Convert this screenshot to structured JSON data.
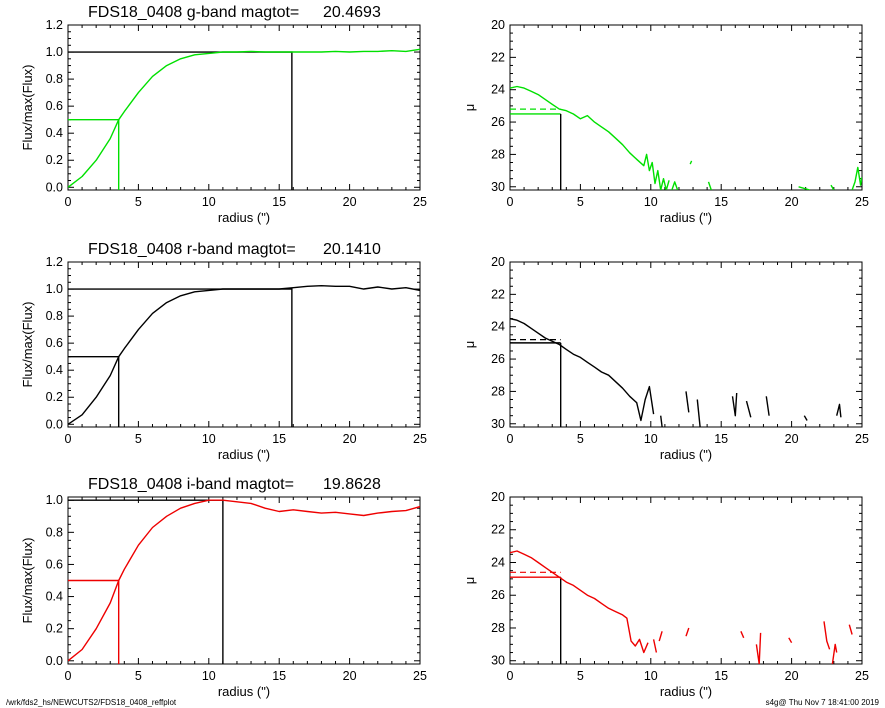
{
  "footer": {
    "left": "/wrk/fds2_hs/NEWCUTS2/FDS18_0408_reffplot",
    "right": "s4g@  Thu Nov  7 18:41:00 2019"
  },
  "colors": {
    "g": "#00e000",
    "r": "#000000",
    "i": "#ee0000",
    "axis": "#000000"
  },
  "chart_data": [
    {
      "type": "line",
      "band": "g",
      "panel": "growth-curve",
      "title_label": "FDS18_0408 g-band  magtot=",
      "title_value": "20.4693",
      "xlabel": "radius (\")",
      "ylabel": "Flux/max(Flux)",
      "xlim": [
        0,
        25
      ],
      "ylim": [
        -0.02,
        1.2
      ],
      "xticks": [
        "0",
        "5",
        "10",
        "15",
        "20",
        "25"
      ],
      "yticks": [
        "0.0",
        "0.2",
        "0.4",
        "0.6",
        "0.8",
        "1.0",
        "1.2"
      ],
      "yticks_values": [
        0,
        0.2,
        0.4,
        0.6,
        0.8,
        1.0,
        1.2
      ],
      "series": [
        {
          "x": [
            0,
            1,
            2,
            3,
            3.6,
            4,
            5,
            6,
            7,
            8,
            9,
            10,
            11,
            12,
            13,
            14,
            15,
            16,
            17,
            18,
            19,
            20,
            21,
            22,
            23,
            24,
            25
          ],
          "y": [
            0,
            0.08,
            0.2,
            0.36,
            0.5,
            0.56,
            0.7,
            0.82,
            0.9,
            0.95,
            0.98,
            0.99,
            1.0,
            1.0,
            1.005,
            1.0,
            1.0,
            1.0,
            1.0,
            1.0,
            1.005,
            1.0,
            1.005,
            1.005,
            1.01,
            1.005,
            1.02
          ]
        }
      ],
      "half_light_radius": 3.6,
      "half_light_level": 0.5,
      "total_radius": 15.9,
      "total_level": 1.0
    },
    {
      "type": "line",
      "band": "g",
      "panel": "surface-brightness",
      "xlabel": "radius (\")",
      "ylabel": "μ",
      "xlim": [
        0,
        25
      ],
      "ylim": [
        30.2,
        20
      ],
      "y_inverted": true,
      "xticks": [
        "0",
        "5",
        "10",
        "15",
        "20",
        "25"
      ],
      "yticks": [
        "20",
        "22",
        "24",
        "26",
        "28",
        "30"
      ],
      "yticks_values": [
        20,
        22,
        24,
        26,
        28,
        30
      ],
      "series": [
        {
          "x": [
            0,
            0.5,
            1,
            1.5,
            2,
            2.5,
            3,
            3.5,
            4,
            4.5,
            5,
            5.5,
            6,
            6.5,
            7,
            7.5,
            8,
            8.5,
            9,
            9.5,
            9.7,
            9.9,
            10.1,
            10.3,
            10.5,
            10.7,
            10.9,
            11.1,
            11.3
          ],
          "y": [
            23.9,
            23.8,
            23.9,
            24.1,
            24.3,
            24.6,
            24.9,
            25.2,
            25.3,
            25.5,
            25.8,
            25.6,
            26.0,
            26.3,
            26.6,
            27.0,
            27.4,
            27.9,
            28.3,
            28.7,
            28.0,
            29.0,
            28.5,
            29.8,
            29.0,
            30.2,
            29.5,
            30.2,
            29.6
          ]
        },
        {
          "x": [
            11.5,
            11.7,
            11.9
          ],
          "y": [
            30.2,
            29.7,
            30.2
          ]
        },
        {
          "x": [
            12.8,
            12.9
          ],
          "y": [
            28.6,
            28.4
          ]
        },
        {
          "x": [
            14.1,
            14.3
          ],
          "y": [
            29.7,
            30.2
          ]
        },
        {
          "x": [
            20.5,
            21.3
          ],
          "y": [
            30.0,
            30.2
          ]
        },
        {
          "x": [
            22.8,
            23.0
          ],
          "y": [
            29.9,
            30.2
          ]
        },
        {
          "x": [
            24.3,
            24.5,
            24.7,
            24.9,
            25
          ],
          "y": [
            30.2,
            29.7,
            28.8,
            29.9,
            29.4
          ]
        }
      ],
      "reff": 3.6,
      "mu_eff": 25.5,
      "mu_mean": 25.2
    },
    {
      "type": "line",
      "band": "r",
      "panel": "growth-curve",
      "title_label": "FDS18_0408 r-band  magtot=",
      "title_value": "20.1410",
      "xlabel": "radius (\")",
      "ylabel": "Flux/max(Flux)",
      "xlim": [
        0,
        25
      ],
      "ylim": [
        -0.02,
        1.2
      ],
      "xticks": [
        "0",
        "5",
        "10",
        "15",
        "20",
        "25"
      ],
      "yticks": [
        "0.0",
        "0.2",
        "0.4",
        "0.6",
        "0.8",
        "1.0",
        "1.2"
      ],
      "yticks_values": [
        0,
        0.2,
        0.4,
        0.6,
        0.8,
        1.0,
        1.2
      ],
      "series": [
        {
          "x": [
            0,
            1,
            2,
            3,
            3.6,
            4,
            5,
            6,
            7,
            8,
            9,
            10,
            11,
            12,
            13,
            14,
            15,
            16,
            17,
            18,
            19,
            20,
            21,
            22,
            23,
            24,
            25
          ],
          "y": [
            0,
            0.07,
            0.2,
            0.36,
            0.5,
            0.56,
            0.7,
            0.82,
            0.9,
            0.95,
            0.98,
            0.99,
            1.0,
            1.0,
            1.0,
            1.0,
            1.0,
            1.01,
            1.02,
            1.025,
            1.02,
            1.02,
            1.0,
            1.015,
            1.0,
            1.01,
            0.99
          ]
        }
      ],
      "half_light_radius": 3.6,
      "half_light_level": 0.5,
      "total_radius": 15.9,
      "total_level": 1.0
    },
    {
      "type": "line",
      "band": "r",
      "panel": "surface-brightness",
      "xlabel": "radius (\")",
      "ylabel": "μ",
      "xlim": [
        0,
        25
      ],
      "ylim": [
        30.2,
        20
      ],
      "y_inverted": true,
      "xticks": [
        "0",
        "5",
        "10",
        "15",
        "20",
        "25"
      ],
      "yticks": [
        "20",
        "22",
        "24",
        "26",
        "28",
        "30"
      ],
      "yticks_values": [
        20,
        22,
        24,
        26,
        28,
        30
      ],
      "series": [
        {
          "x": [
            0,
            0.5,
            1,
            1.5,
            2,
            2.5,
            3,
            3.5,
            4,
            4.5,
            5,
            5.5,
            6,
            6.5,
            7,
            7.5,
            8,
            8.5,
            9,
            9.3,
            9.6,
            9.9,
            10.2
          ],
          "y": [
            23.5,
            23.6,
            23.8,
            24.1,
            24.4,
            24.7,
            24.9,
            25.1,
            25.4,
            25.7,
            25.9,
            26.2,
            26.5,
            26.8,
            27.0,
            27.4,
            27.8,
            28.3,
            28.7,
            29.8,
            28.5,
            27.7,
            29.4
          ]
        },
        {
          "x": [
            10.7,
            10.8
          ],
          "y": [
            29.5,
            30.2
          ]
        },
        {
          "x": [
            12.5,
            12.7
          ],
          "y": [
            28.0,
            29.3
          ]
        },
        {
          "x": [
            13.3,
            13.5
          ],
          "y": [
            28.5,
            30.2
          ]
        },
        {
          "x": [
            15.8,
            16.0,
            16.1
          ],
          "y": [
            28.3,
            29.5,
            28.1
          ]
        },
        {
          "x": [
            16.8,
            17.1
          ],
          "y": [
            28.6,
            29.6
          ]
        },
        {
          "x": [
            18.2,
            18.4
          ],
          "y": [
            28.3,
            29.5
          ]
        },
        {
          "x": [
            20.9,
            21.1
          ],
          "y": [
            29.5,
            29.8
          ]
        },
        {
          "x": [
            23.2,
            23.4,
            23.5
          ],
          "y": [
            29.5,
            28.8,
            29.6
          ]
        }
      ],
      "reff": 3.6,
      "mu_eff": 25.0,
      "mu_mean": 24.8
    },
    {
      "type": "line",
      "band": "i",
      "panel": "growth-curve",
      "title_label": "FDS18_0408 i-band  magtot=",
      "title_value": "19.8628",
      "xlabel": "radius (\")",
      "ylabel": "Flux/max(Flux)",
      "xlim": [
        0,
        25
      ],
      "ylim": [
        -0.02,
        1.02
      ],
      "xticks": [
        "0",
        "5",
        "10",
        "15",
        "20",
        "25"
      ],
      "yticks": [
        "0.0",
        "0.2",
        "0.4",
        "0.6",
        "0.8",
        "1.0"
      ],
      "yticks_values": [
        0,
        0.2,
        0.4,
        0.6,
        0.8,
        1.0
      ],
      "series": [
        {
          "x": [
            0,
            1,
            2,
            3,
            3.6,
            4,
            5,
            6,
            7,
            8,
            9,
            10,
            11,
            12,
            13,
            14,
            15,
            16,
            17,
            18,
            19,
            20,
            21,
            22,
            23,
            24,
            25
          ],
          "y": [
            0,
            0.07,
            0.2,
            0.36,
            0.5,
            0.57,
            0.72,
            0.83,
            0.9,
            0.95,
            0.98,
            1.0,
            1.0,
            0.99,
            0.98,
            0.95,
            0.93,
            0.94,
            0.93,
            0.92,
            0.925,
            0.915,
            0.905,
            0.92,
            0.93,
            0.935,
            0.96
          ]
        }
      ],
      "half_light_radius": 3.6,
      "half_light_level": 0.5,
      "total_radius": 11.0,
      "total_level": 1.0
    },
    {
      "type": "line",
      "band": "i",
      "panel": "surface-brightness",
      "xlabel": "radius (\")",
      "ylabel": "μ",
      "xlim": [
        0,
        25
      ],
      "ylim": [
        30.2,
        20
      ],
      "y_inverted": true,
      "xticks": [
        "0",
        "5",
        "10",
        "15",
        "20",
        "25"
      ],
      "yticks": [
        "20",
        "22",
        "24",
        "26",
        "28",
        "30"
      ],
      "yticks_values": [
        20,
        22,
        24,
        26,
        28,
        30
      ],
      "series": [
        {
          "x": [
            0,
            0.5,
            1,
            1.5,
            2,
            2.5,
            3,
            3.5,
            4,
            4.5,
            5,
            5.5,
            6,
            6.5,
            7,
            7.5,
            8,
            8.3,
            8.6,
            8.9,
            9.2,
            9.5,
            9.8
          ],
          "y": [
            23.4,
            23.3,
            23.5,
            23.7,
            24.0,
            24.3,
            24.6,
            24.9,
            25.2,
            25.4,
            25.7,
            26.0,
            26.2,
            26.5,
            26.8,
            27.0,
            27.2,
            27.4,
            28.8,
            29.1,
            28.7,
            29.5,
            28.9
          ]
        },
        {
          "x": [
            10.2,
            10.4
          ],
          "y": [
            28.7,
            29.5
          ]
        },
        {
          "x": [
            10.6,
            10.8
          ],
          "y": [
            28.8,
            28.2
          ]
        },
        {
          "x": [
            12.5,
            12.7
          ],
          "y": [
            28.5,
            28.0
          ]
        },
        {
          "x": [
            16.4,
            16.6
          ],
          "y": [
            28.2,
            28.6
          ]
        },
        {
          "x": [
            17.5,
            17.7,
            17.8
          ],
          "y": [
            29.0,
            30.2,
            28.3
          ]
        },
        {
          "x": [
            19.8,
            20.0
          ],
          "y": [
            28.6,
            28.9
          ]
        },
        {
          "x": [
            22.3,
            22.5,
            22.7
          ],
          "y": [
            27.6,
            28.8,
            29.3
          ]
        },
        {
          "x": [
            22.9,
            23.1,
            23.2
          ],
          "y": [
            30.2,
            29.0,
            29.5
          ]
        },
        {
          "x": [
            24.1,
            24.3
          ],
          "y": [
            27.8,
            28.4
          ]
        }
      ],
      "reff": 3.6,
      "mu_eff": 24.9,
      "mu_mean": 24.6
    }
  ]
}
